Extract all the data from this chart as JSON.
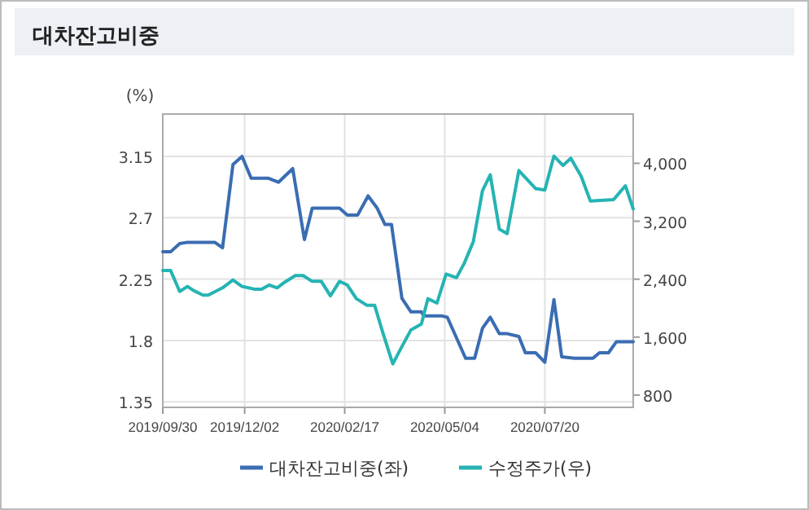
{
  "chart_data": {
    "type": "line",
    "title": "대차잔고비중",
    "ylabel": "(%)",
    "legend": "bottom",
    "grid": true,
    "line_style": "solid",
    "xlim": [
      "2019-09-30",
      "2020-09-26"
    ],
    "xticks": [
      {
        "value": "2019-09-30",
        "label": "2019/09/30"
      },
      {
        "value": "2019-12-02",
        "label": "2019/12/02"
      },
      {
        "value": "2020-02-17",
        "label": "2020/02/17"
      },
      {
        "value": "2020-05-04",
        "label": "2020/05/04"
      },
      {
        "value": "2020-07-20",
        "label": "2020/07/20"
      }
    ],
    "ylim": [
      1.31,
      3.46
    ],
    "yticks": [
      1.35,
      1.8,
      2.25,
      2.7,
      3.15
    ],
    "y2lim": [
      630,
      4680
    ],
    "y2ticks": [
      {
        "value": 800,
        "label": "800"
      },
      {
        "value": 1600,
        "label": "1,600"
      },
      {
        "value": 2400,
        "label": "2,400"
      },
      {
        "value": 3200,
        "label": "3,200"
      },
      {
        "value": 4000,
        "label": "4,000"
      }
    ],
    "series": [
      {
        "name": "대차잔고비중(좌)",
        "color": "#3a6db2",
        "x": [
          "2019-09-30",
          "2019-10-06",
          "2019-10-13",
          "2019-10-19",
          "2019-10-29",
          "2019-11-09",
          "2019-11-15",
          "2019-11-23",
          "2019-11-30",
          "2019-12-07",
          "2019-12-20",
          "2019-12-28",
          "2020-01-08",
          "2020-01-17",
          "2020-01-23",
          "2020-01-31",
          "2020-02-13",
          "2020-02-19",
          "2020-02-27",
          "2020-03-06",
          "2020-03-13",
          "2020-03-19",
          "2020-03-24",
          "2020-04-01",
          "2020-04-08",
          "2020-04-16",
          "2020-04-18",
          "2020-05-02",
          "2020-05-06",
          "2020-05-20",
          "2020-05-27",
          "2020-06-02",
          "2020-06-08",
          "2020-06-15",
          "2020-06-21",
          "2020-06-30",
          "2020-07-05",
          "2020-07-13",
          "2020-07-20",
          "2020-07-27",
          "2020-08-02",
          "2020-08-12",
          "2020-08-26",
          "2020-08-31",
          "2020-09-07",
          "2020-09-13",
          "2020-09-26"
        ],
        "values": [
          2.45,
          2.45,
          2.51,
          2.52,
          2.52,
          2.52,
          2.48,
          3.09,
          3.15,
          2.99,
          2.99,
          2.96,
          3.06,
          2.54,
          2.77,
          2.77,
          2.77,
          2.72,
          2.72,
          2.86,
          2.77,
          2.65,
          2.65,
          2.11,
          2.01,
          2.01,
          1.98,
          1.98,
          1.97,
          1.67,
          1.67,
          1.89,
          1.97,
          1.85,
          1.85,
          1.83,
          1.71,
          1.71,
          1.64,
          2.1,
          1.68,
          1.67,
          1.67,
          1.71,
          1.71,
          1.79,
          1.79
        ]
      },
      {
        "name": "수정주가(우)",
        "color": "#26b3b3",
        "axis": "y2",
        "x": [
          "2019-09-30",
          "2019-10-06",
          "2019-10-13",
          "2019-10-19",
          "2019-10-24",
          "2019-10-31",
          "2019-11-04",
          "2019-11-15",
          "2019-11-23",
          "2019-11-30",
          "2019-12-10",
          "2019-12-15",
          "2019-12-21",
          "2019-12-27",
          "2020-01-02",
          "2020-01-10",
          "2020-01-16",
          "2020-01-23",
          "2020-01-30",
          "2020-02-06",
          "2020-02-13",
          "2020-02-19",
          "2020-02-26",
          "2020-03-05",
          "2020-03-11",
          "2020-03-17",
          "2020-03-25",
          "2020-04-01",
          "2020-04-08",
          "2020-04-16",
          "2020-04-21",
          "2020-04-28",
          "2020-05-05",
          "2020-05-13",
          "2020-05-19",
          "2020-05-26",
          "2020-06-02",
          "2020-06-08",
          "2020-06-15",
          "2020-06-21",
          "2020-06-30",
          "2020-07-13",
          "2020-07-20",
          "2020-07-27",
          "2020-08-03",
          "2020-08-09",
          "2020-08-17",
          "2020-08-24",
          "2020-09-11",
          "2020-09-20",
          "2020-09-26"
        ],
        "values": [
          2520,
          2520,
          2230,
          2300,
          2240,
          2180,
          2180,
          2280,
          2390,
          2300,
          2260,
          2260,
          2320,
          2280,
          2360,
          2450,
          2450,
          2370,
          2370,
          2170,
          2370,
          2320,
          2130,
          2040,
          2040,
          1680,
          1230,
          1470,
          1700,
          1780,
          2130,
          2070,
          2470,
          2420,
          2620,
          2920,
          3620,
          3840,
          3090,
          3030,
          3900,
          3650,
          3630,
          4100,
          3970,
          4070,
          3820,
          3480,
          3500,
          3690,
          3370
        ]
      }
    ]
  }
}
